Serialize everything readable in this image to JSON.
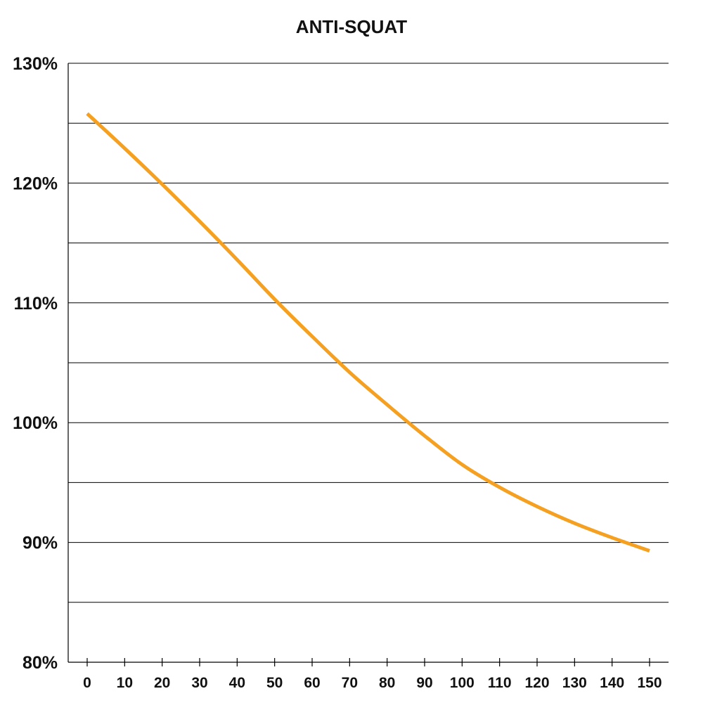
{
  "chart_data": {
    "type": "line",
    "title": "ANTI-SQUAT",
    "xlabel": "",
    "ylabel": "",
    "x_ticks": [
      "0",
      "10",
      "20",
      "30",
      "40",
      "50",
      "60",
      "70",
      "80",
      "90",
      "100",
      "110",
      "120",
      "130",
      "140",
      "150"
    ],
    "y_ticks": [
      "80%",
      "90%",
      "100%",
      "110%",
      "120%",
      "130%"
    ],
    "xlim": [
      0,
      150
    ],
    "ylim": [
      80,
      130
    ],
    "grid": "horizontal every 5%",
    "line_color": "#F5A020",
    "series": [
      {
        "x": [
          0,
          10,
          20,
          30,
          40,
          50,
          60,
          70,
          80,
          90,
          100,
          110,
          120,
          130,
          140,
          150
        ],
        "y": [
          125.8,
          122.9,
          119.9,
          116.8,
          113.6,
          110.3,
          107.2,
          104.2,
          101.5,
          98.9,
          96.5,
          94.6,
          93.0,
          91.6,
          90.4,
          89.3
        ]
      }
    ]
  }
}
